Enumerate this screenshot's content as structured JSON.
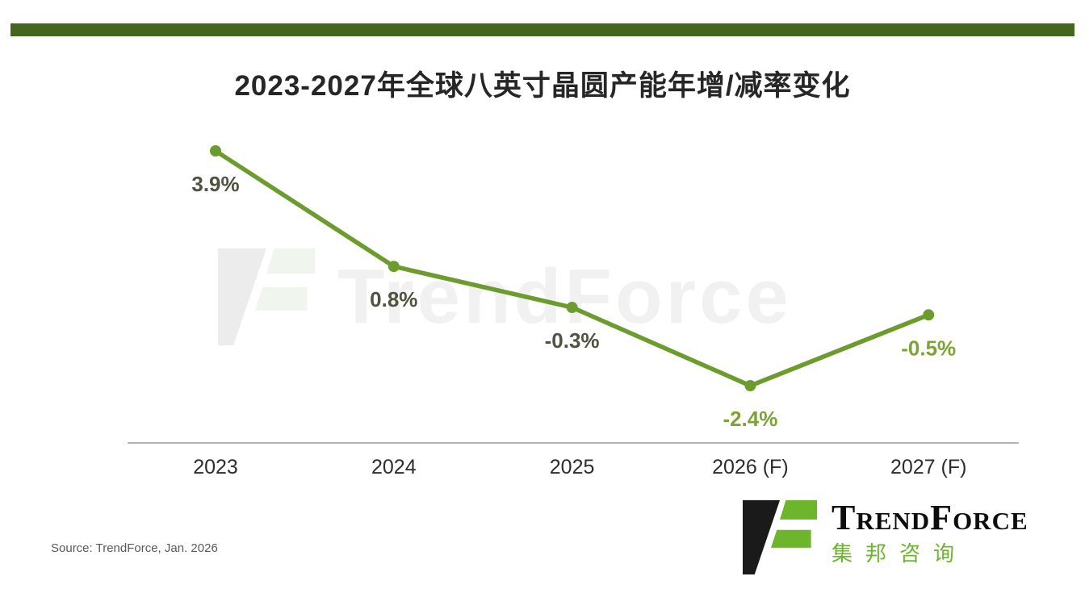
{
  "page": {
    "title": "2023-2027年全球八英寸晶圆产能年增/减率变化",
    "source": "Source: TrendForce, Jan. 2026",
    "watermark": "TrendForce",
    "brand": {
      "wordmark": "TrendForce",
      "chinese_name": "集邦咨询"
    },
    "colors": {
      "top_bar": "#44671e",
      "line": "#6d9c2e",
      "label_actual": "#50533f",
      "label_forecast": "#7da432",
      "axis": "#9b9b9b",
      "x_label": "#2d2d2d",
      "brand_green": "#6cb52d",
      "brand_black": "#1a1a1a"
    }
  },
  "chart_data": {
    "type": "line",
    "title": "2023-2027年全球八英寸晶圆产能年增/减率变化",
    "categories": [
      "2023",
      "2024",
      "2025",
      "2026 (F)",
      "2027 (F)"
    ],
    "values": [
      3.9,
      0.8,
      -0.3,
      -2.4,
      -0.5
    ],
    "labels": [
      "3.9%",
      "0.8%",
      "-0.3%",
      "-2.4%",
      "-0.5%"
    ],
    "ylim": [
      -4,
      4.5
    ],
    "grid": false,
    "legend": "none",
    "forecast_from_index": 3
  }
}
